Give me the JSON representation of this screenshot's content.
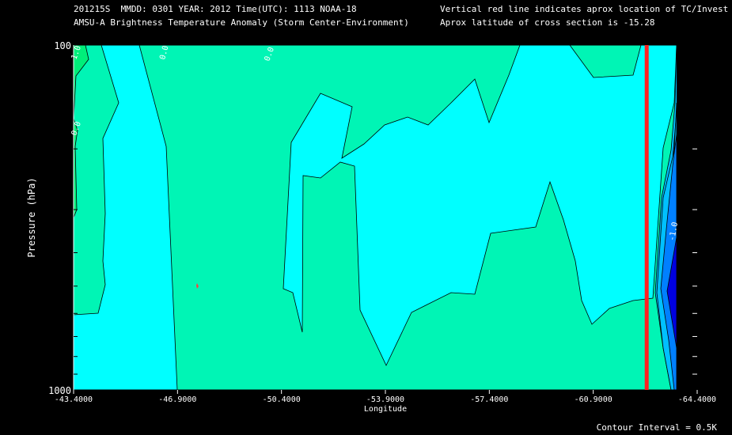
{
  "header": {
    "line1_left": "201215S  MMDD: 0301 YEAR: 2012 Time(UTC): 1113 NOAA-18",
    "line2_left": "AMSU-A Brightness Temperature Anomaly (Storm Center-Environment)",
    "line1_right": "Vertical red line indicates aprox location of TC/Invest",
    "line2_right": "Aprox latitude of cross section is -15.28"
  },
  "footer": {
    "contour_interval": "Contour Interval = 0.5K"
  },
  "chart_data": {
    "type": "heatmap",
    "title": "AMSU-A Brightness Temperature Anomaly (Storm Center-Environment)",
    "xlabel": "Longitude",
    "ylabel": "Pressure (hPa)",
    "x_ticks": [
      "-43.4000",
      "-46.9000",
      "-50.4000",
      "-53.9000",
      "-57.4000",
      "-60.9000",
      "-64.4000"
    ],
    "x_tick_values": [
      -43.4,
      -46.9,
      -50.4,
      -53.9,
      -57.4,
      -60.9,
      -64.4
    ],
    "y_ticks": [
      "100",
      "1000"
    ],
    "xlim": [
      -43.4,
      -64.4
    ],
    "ylim": [
      100,
      1000
    ],
    "y_scale": "log",
    "y_minor_ticks": [
      200,
      300,
      400,
      500,
      600,
      700,
      800,
      900
    ],
    "tc_longitude": -62.7,
    "tc_line_color": "#ff2020",
    "contour_labels": [
      "1.0",
      "0.0",
      "0.0",
      "0.0",
      "-1.0"
    ],
    "colors": {
      "level_1": "#00ee7a",
      "level_05": "#00f5b5",
      "level_0": "#00ffff",
      "level_m05": "#00c0ff",
      "level_m1": "#0080ff",
      "level_m15": "#0000e0"
    }
  }
}
